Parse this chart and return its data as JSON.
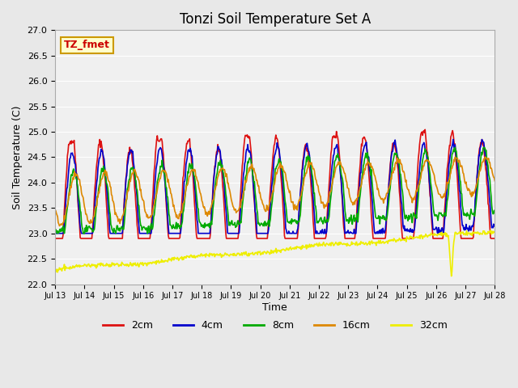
{
  "title": "Tonzi Soil Temperature Set A",
  "ylabel": "Soil Temperature (C)",
  "xlabel": "Time",
  "annotation_text": "TZ_fmet",
  "annotation_bg": "#ffffcc",
  "annotation_border": "#cc9900",
  "annotation_text_color": "#cc0000",
  "ylim": [
    22.0,
    27.0
  ],
  "yticks": [
    22.0,
    22.5,
    23.0,
    23.5,
    24.0,
    24.5,
    25.0,
    25.5,
    26.0,
    26.5,
    27.0
  ],
  "xtick_labels": [
    "Jul 13",
    "Jul 14",
    "Jul 15",
    "Jul 16",
    "Jul 17",
    "Jul 18",
    "Jul 19",
    "Jul 20",
    "Jul 21",
    "Jul 22",
    "Jul 23",
    "Jul 24",
    "Jul 25",
    "Jul 26",
    "Jul 27",
    "Jul 28"
  ],
  "line_colors": {
    "2cm": "#dd1111",
    "4cm": "#0000cc",
    "8cm": "#00aa00",
    "16cm": "#dd8800",
    "32cm": "#eeee00"
  },
  "line_widths": {
    "2cm": 1.2,
    "4cm": 1.2,
    "8cm": 1.2,
    "16cm": 1.2,
    "32cm": 1.2
  },
  "bg_color": "#e8e8e8",
  "plot_bg_color": "#f0f0f0",
  "n_days": 15,
  "start_day": 13
}
